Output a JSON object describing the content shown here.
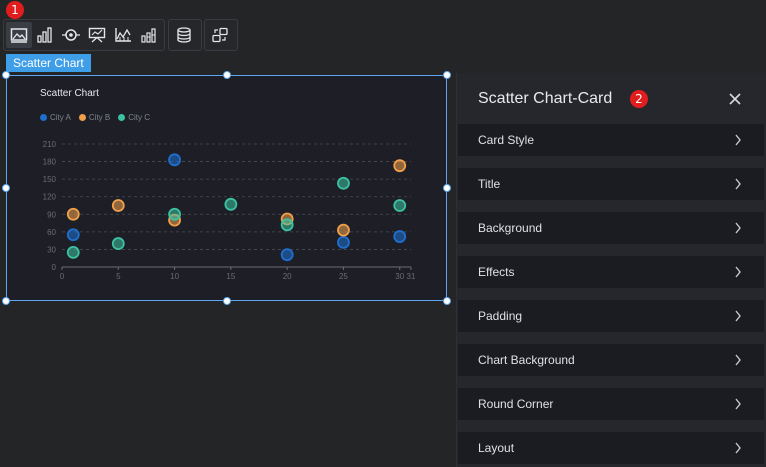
{
  "annotations": {
    "marker1": "1",
    "marker2": "2"
  },
  "toolbar": {
    "icons": [
      "image-icon",
      "bar-chart-icon",
      "radio-target-icon",
      "presentation-icon",
      "line-chart-icon",
      "stacked-bar-icon",
      "database-icon",
      "link-swap-icon"
    ]
  },
  "selected_tag": "Scatter Chart",
  "colors": {
    "city_a": "#1e6fd0",
    "city_b": "#f0a04a",
    "city_c": "#3cc1a2",
    "accent": "#3f9ee8"
  },
  "chart_data": {
    "type": "scatter",
    "title": "Scatter Chart",
    "xlim": [
      0,
      31
    ],
    "ylim": [
      0,
      210
    ],
    "x_ticks": [
      "0",
      "5",
      "10",
      "15",
      "20",
      "25",
      "30",
      "31"
    ],
    "y_ticks": [
      "0",
      "30",
      "60",
      "90",
      "120",
      "150",
      "180",
      "210"
    ],
    "grid": true,
    "legend_position": "top-left",
    "series": [
      {
        "name": "City A",
        "points": [
          [
            1,
            55
          ],
          [
            10,
            183
          ],
          [
            20,
            21
          ],
          [
            25,
            42
          ],
          [
            30,
            52
          ]
        ]
      },
      {
        "name": "City B",
        "points": [
          [
            1,
            90
          ],
          [
            5,
            105
          ],
          [
            10,
            80
          ],
          [
            20,
            82
          ],
          [
            25,
            63
          ],
          [
            30,
            173
          ]
        ]
      },
      {
        "name": "City C",
        "points": [
          [
            1,
            25
          ],
          [
            5,
            40
          ],
          [
            10,
            90
          ],
          [
            15,
            107
          ],
          [
            20,
            72
          ],
          [
            25,
            143
          ],
          [
            30,
            105
          ]
        ]
      }
    ]
  },
  "panel": {
    "title": "Scatter Chart-Card",
    "rows": [
      "Card Style",
      "Title",
      "Background",
      "Effects",
      "Padding",
      "Chart Background",
      "Round Corner",
      "Layout"
    ]
  }
}
